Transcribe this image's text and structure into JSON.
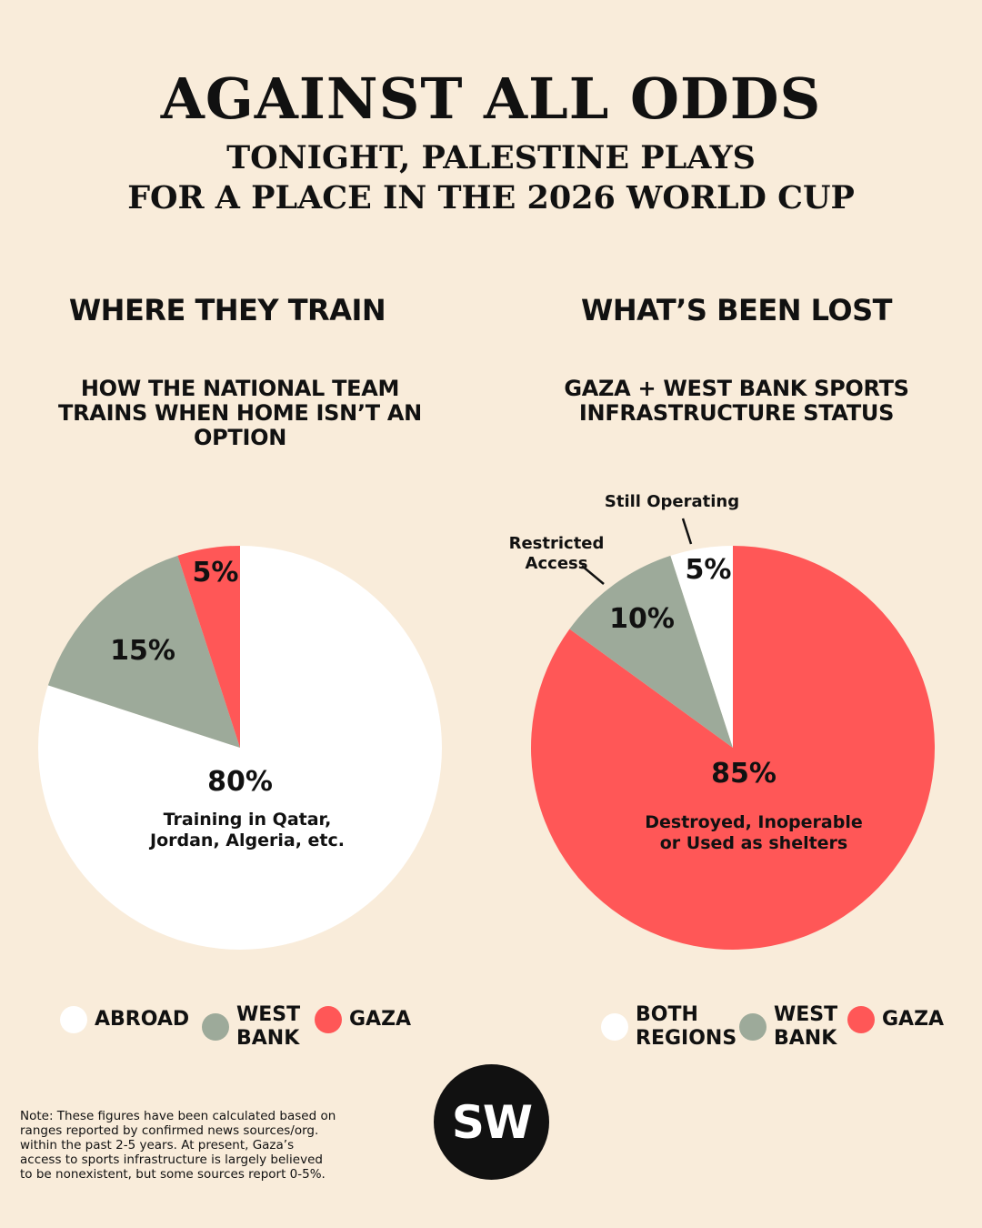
{
  "header": {
    "title": "AGAINST ALL ODDS",
    "subtitle_line1": "TONIGHT, PALESTINE PLAYS",
    "subtitle_line2": "FOR A PLACE IN THE 2026 WORLD CUP"
  },
  "colors": {
    "background": "#f9ecda",
    "white": "#ffffff",
    "green": "#9daa9a",
    "red": "#ff5757",
    "dark": "#111111"
  },
  "chart_data": [
    {
      "type": "pie",
      "section_title": "WHERE THEY TRAIN",
      "title_lines": [
        "HOW THE NATIONAL TEAM",
        "TRAINS WHEN HOME ISN’T AN",
        "OPTION"
      ],
      "slices": [
        {
          "label": "ABROAD",
          "value": 80,
          "display": "80%",
          "color": "#ffffff",
          "annotation_lines": [
            "Training in Qatar,",
            "Jordan, Algeria, etc."
          ]
        },
        {
          "label": "WEST BANK",
          "value": 15,
          "display": "15%",
          "color": "#9daa9a"
        },
        {
          "label": "GAZA",
          "value": 5,
          "display": "5%",
          "color": "#ff5757"
        }
      ],
      "legend": [
        {
          "lines": [
            "ABROAD"
          ],
          "color": "#ffffff"
        },
        {
          "lines": [
            "WEST",
            "BANK"
          ],
          "color": "#9daa9a"
        },
        {
          "lines": [
            "GAZA"
          ],
          "color": "#ff5757"
        }
      ]
    },
    {
      "type": "pie",
      "section_title": "WHAT’S BEEN LOST",
      "title_lines": [
        "GAZA + WEST BANK SPORTS",
        "INFRASTRUCTURE STATUS"
      ],
      "slices": [
        {
          "label": "GAZA",
          "value": 85,
          "display": "85%",
          "color": "#ff5757",
          "annotation_lines": [
            "Destroyed, Inoperable",
            "or Used as shelters"
          ]
        },
        {
          "label": "WEST BANK",
          "value": 10,
          "display": "10%",
          "color": "#9daa9a",
          "callout_lines": [
            "Restricted",
            "Access"
          ]
        },
        {
          "label": "BOTH REGIONS",
          "value": 5,
          "display": "5%",
          "color": "#ffffff",
          "callout_lines": [
            "Still Operating"
          ]
        }
      ],
      "legend": [
        {
          "lines": [
            "BOTH",
            "REGIONS"
          ],
          "color": "#ffffff"
        },
        {
          "lines": [
            "WEST",
            "BANK"
          ],
          "color": "#9daa9a"
        },
        {
          "lines": [
            "GAZA"
          ],
          "color": "#ff5757"
        }
      ]
    }
  ],
  "note": "Note: These figures have been calculated based on ranges reported by confirmed news sources/org. within the past 2-5 years. At present, Gaza’s access to sports infrastructure is largely believed to be nonexistent, but some sources report 0-5%.",
  "logo_text": "SW"
}
